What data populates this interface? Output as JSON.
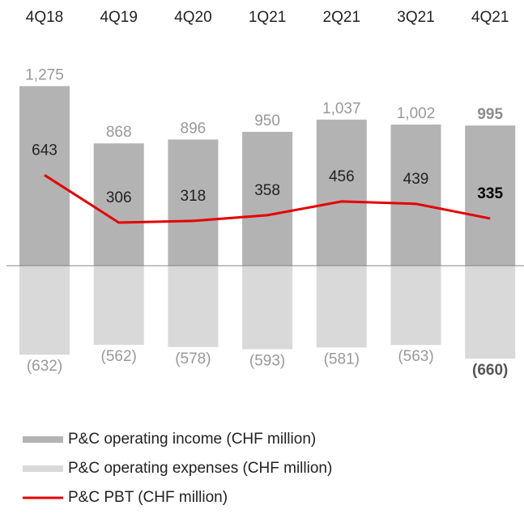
{
  "chart_data": {
    "type": "bar",
    "categories": [
      "4Q18",
      "4Q19",
      "4Q20",
      "1Q21",
      "2Q21",
      "3Q21",
      "4Q21"
    ],
    "ylim": [
      -700,
      1300
    ],
    "series": [
      {
        "name": "P&C operating income (CHF million)",
        "type": "bar",
        "color": "#b3b3b3",
        "values": [
          1275,
          868,
          896,
          950,
          1037,
          1002,
          995
        ],
        "value_labels": [
          "1,275",
          "868",
          "896",
          "950",
          "1,037",
          "1,002",
          "995"
        ]
      },
      {
        "name": "P&C operating expenses (CHF million)",
        "type": "bar",
        "color": "#d9d9d9",
        "values": [
          -632,
          -562,
          -578,
          -593,
          -581,
          -563,
          -660
        ],
        "value_labels": [
          "(632)",
          "(562)",
          "(578)",
          "(593)",
          "(581)",
          "(563)",
          "(660)"
        ]
      },
      {
        "name": "P&C PBT (CHF million)",
        "type": "line",
        "color": "#e60000",
        "values": [
          643,
          306,
          318,
          358,
          456,
          439,
          335
        ]
      }
    ]
  }
}
